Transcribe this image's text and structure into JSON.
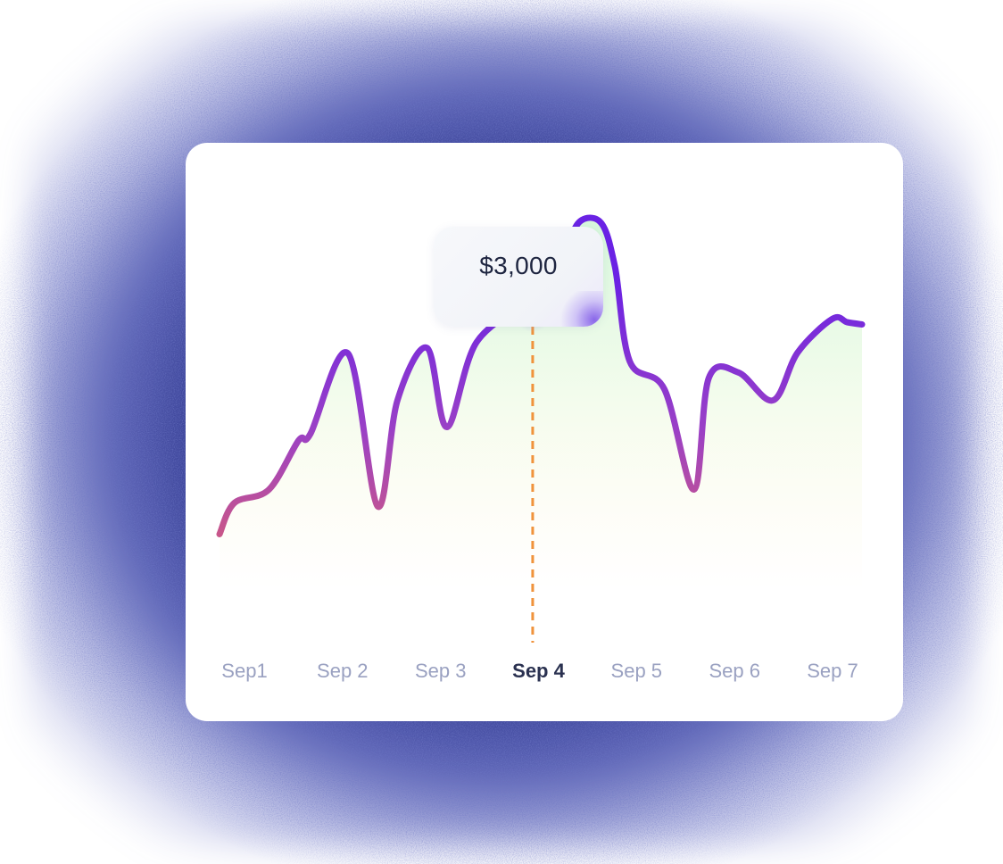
{
  "tooltip": {
    "value": "$3,000"
  },
  "colors": {
    "line_top": "#6a22e4",
    "line_bottom": "#d05a80",
    "marker": "#f4b27a",
    "guide": "#f0933c",
    "fill_top": "#c9f5d0",
    "fill_bottom": "#fff7e6"
  },
  "chart_data": {
    "type": "area",
    "title": "",
    "xlabel": "",
    "ylabel": "",
    "categories": [
      "Sep1",
      "Sep 2",
      "Sep 3",
      "Sep 4",
      "Sep 5",
      "Sep 6",
      "Sep 7"
    ],
    "highlight_category": "Sep 4",
    "highlight_value": 3000,
    "x": [
      0,
      0.15,
      0.5,
      0.8,
      0.92,
      1.3,
      1.6,
      1.8,
      2.1,
      2.3,
      2.6,
      3.15,
      3.2,
      3.35,
      3.5,
      3.6,
      3.85,
      4.0,
      4.15,
      4.5,
      4.8,
      4.95,
      5.25,
      5.6,
      5.85,
      6.2,
      6.35,
      6.5
    ],
    "values": [
      900,
      1180,
      1300,
      1740,
      1800,
      2520,
      1150,
      2100,
      2570,
      1860,
      2620,
      3000,
      3080,
      2900,
      3100,
      3650,
      3700,
      3300,
      2450,
      2200,
      1300,
      2300,
      2350,
      2100,
      2530,
      2830,
      2800,
      2780
    ],
    "ylim": [
      0,
      4000
    ]
  },
  "x_axis": {
    "labels": [
      "Sep1",
      "Sep 2",
      "Sep 3",
      "Sep 4",
      "Sep 5",
      "Sep 6",
      "Sep 7"
    ],
    "active_index": 3
  }
}
